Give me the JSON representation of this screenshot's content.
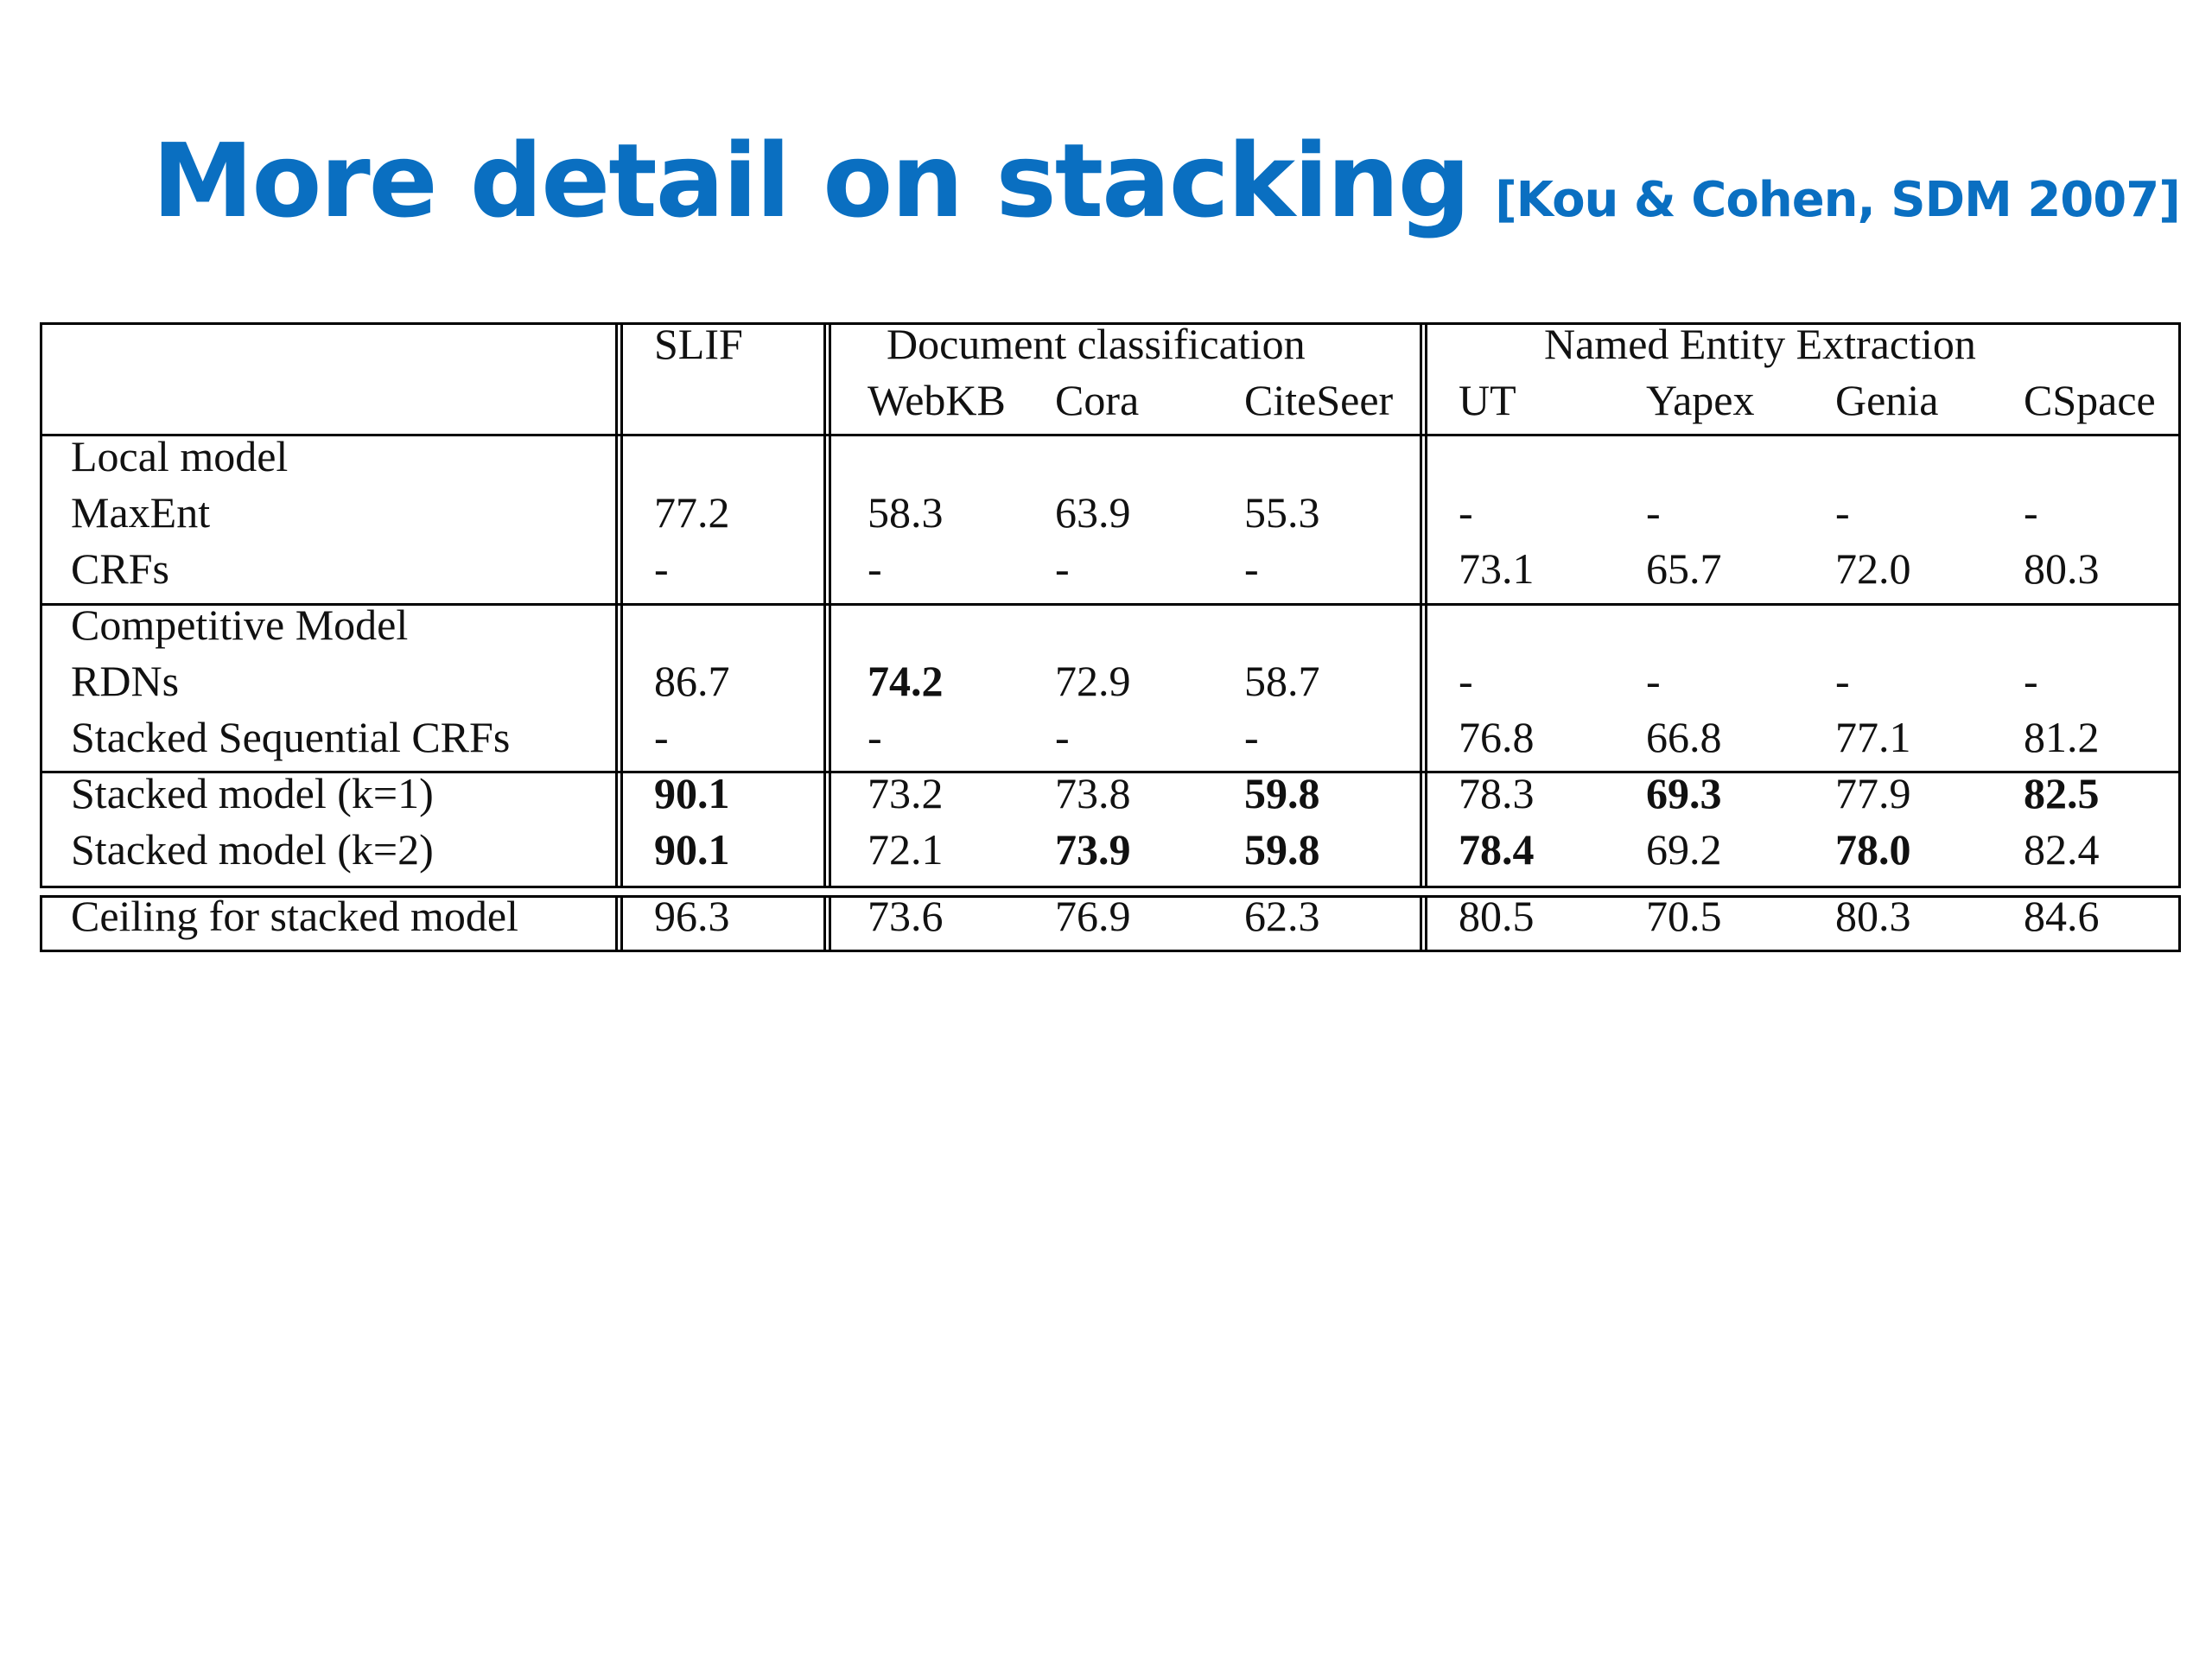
{
  "slide": {
    "title": "More detail on stacking",
    "citation": "[Kou & Cohen, SDM 2007]"
  },
  "table": {
    "headers": {
      "slif": "SLIF",
      "doc_group": "Document classification",
      "ner_group": "Named Entity Extraction",
      "columns": [
        "WebKB",
        "Cora",
        "CiteSeer",
        "UT",
        "Yapex",
        "Genia",
        "CSpace"
      ]
    },
    "sections": [
      {
        "heading": "Local model",
        "rows": [
          {
            "label": "MaxEnt",
            "values": [
              "77.2",
              "58.3",
              "63.9",
              "55.3",
              "-",
              "-",
              "-",
              "-"
            ],
            "bold": []
          },
          {
            "label": "CRFs",
            "values": [
              "-",
              "-",
              "-",
              "-",
              "73.1",
              "65.7",
              "72.0",
              "80.3"
            ],
            "bold": []
          }
        ]
      },
      {
        "heading": "Competitive Model",
        "rows": [
          {
            "label": "RDNs",
            "values": [
              "86.7",
              "74.2",
              "72.9",
              "58.7",
              "-",
              "-",
              "-",
              "-"
            ],
            "bold": [
              1
            ]
          },
          {
            "label": "Stacked Sequential CRFs",
            "values": [
              "-",
              "-",
              "-",
              "-",
              "76.8",
              "66.8",
              "77.1",
              "81.2"
            ],
            "bold": []
          }
        ]
      },
      {
        "heading": "",
        "rows": [
          {
            "label": "Stacked model (k=1)",
            "values": [
              "90.1",
              "73.2",
              "73.8",
              "59.8",
              "78.3",
              "69.3",
              "77.9",
              "82.5"
            ],
            "bold": [
              0,
              3,
              5,
              7
            ]
          },
          {
            "label": "Stacked model (k=2)",
            "values": [
              "90.1",
              "72.1",
              "73.9",
              "59.8",
              "78.4",
              "69.2",
              "78.0",
              "82.4"
            ],
            "bold": [
              0,
              2,
              3,
              4,
              6
            ]
          }
        ]
      }
    ],
    "ceiling": {
      "label": "Ceiling for stacked model",
      "values": [
        "96.3",
        "73.6",
        "76.9",
        "62.3",
        "80.5",
        "70.5",
        "80.3",
        "84.6"
      ]
    }
  }
}
